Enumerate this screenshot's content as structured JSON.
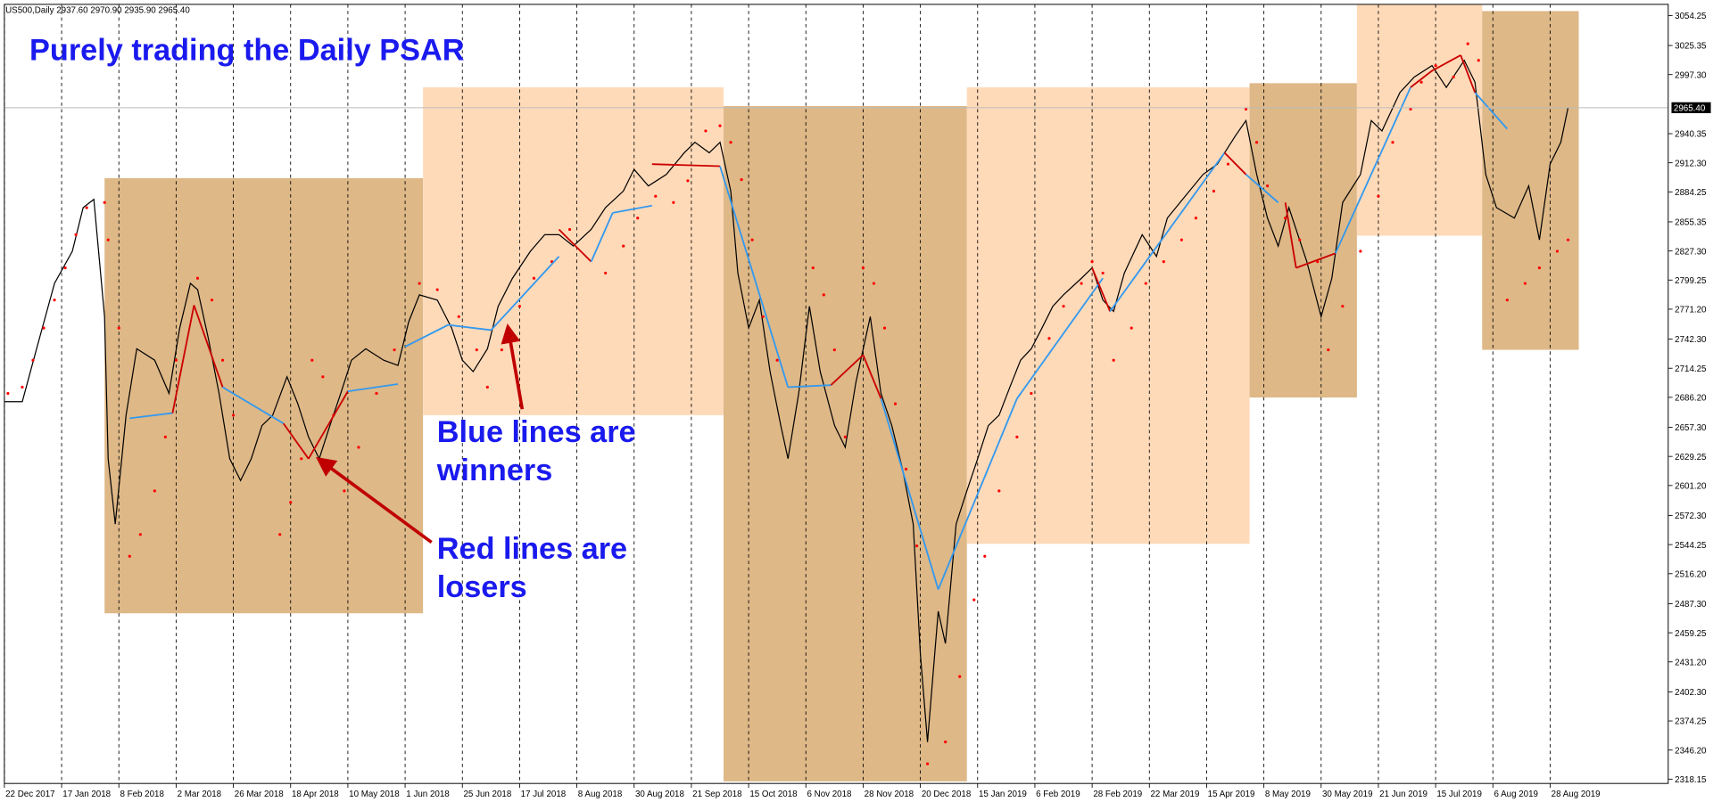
{
  "chart_data": {
    "type": "line",
    "header": "US500,Daily  2937.60 2970.90 2935.90 2965.40",
    "title": "Purely trading the Daily PSAR",
    "annotations": [
      {
        "lines": [
          "Blue lines are",
          "winners"
        ]
      },
      {
        "lines": [
          "Red lines are",
          "losers"
        ]
      }
    ],
    "xlim": [
      0,
      465
    ],
    "xticks": [
      {
        "value": 0,
        "label": "22 Dec 2017"
      },
      {
        "value": 16,
        "label": "17 Jan 2018"
      },
      {
        "value": 32,
        "label": "8 Feb 2018"
      },
      {
        "value": 48,
        "label": "2 Mar 2018"
      },
      {
        "value": 64,
        "label": "26 Mar 2018"
      },
      {
        "value": 80,
        "label": "18 Apr 2018"
      },
      {
        "value": 96,
        "label": "10 May 2018"
      },
      {
        "value": 112,
        "label": "1 Jun 2018"
      },
      {
        "value": 128,
        "label": "25 Jun 2018"
      },
      {
        "value": 144,
        "label": "17 Jul 2018"
      },
      {
        "value": 160,
        "label": "8 Aug 2018"
      },
      {
        "value": 176,
        "label": "30 Aug 2018"
      },
      {
        "value": 192,
        "label": "21 Sep 2018"
      },
      {
        "value": 208,
        "label": "15 Oct 2018"
      },
      {
        "value": 224,
        "label": "6 Nov 2018"
      },
      {
        "value": 240,
        "label": "28 Nov 2018"
      },
      {
        "value": 256,
        "label": "20 Dec 2018"
      },
      {
        "value": 272,
        "label": "15 Jan 2019"
      },
      {
        "value": 288,
        "label": "6 Feb 2019"
      },
      {
        "value": 304,
        "label": "28 Feb 2019"
      },
      {
        "value": 320,
        "label": "22 Mar 2019"
      },
      {
        "value": 336,
        "label": "15 Apr 2019"
      },
      {
        "value": 352,
        "label": "8 May 2019"
      },
      {
        "value": 368,
        "label": "30 May 2019"
      },
      {
        "value": 384,
        "label": "21 Jun 2019"
      },
      {
        "value": 400,
        "label": "15 Jul 2019"
      },
      {
        "value": 416,
        "label": "6 Aug 2019"
      },
      {
        "value": 432,
        "label": "28 Aug 2019"
      }
    ],
    "ylim": [
      2314,
      3065
    ],
    "yticks": [
      3054.25,
      3025.35,
      {
        "value": 2997.3,
        "label": "2997.30"
      },
      2940.35,
      {
        "value": 2912.3,
        "label": "2912.30"
      },
      2884.25,
      2855.35,
      {
        "value": 2827.3,
        "label": "2827.30"
      },
      2799.25,
      {
        "value": 2771.2,
        "label": "2771.20"
      },
      {
        "value": 2742.3,
        "label": "2742.30"
      },
      2714.25,
      {
        "value": 2686.2,
        "label": "2686.20"
      },
      {
        "value": 2657.3,
        "label": "2657.30"
      },
      2629.25,
      {
        "value": 2601.2,
        "label": "2601.20"
      },
      {
        "value": 2572.3,
        "label": "2572.30"
      },
      2544.25,
      {
        "value": 2516.2,
        "label": "2516.20"
      },
      {
        "value": 2487.3,
        "label": "2487.30"
      },
      2459.25,
      {
        "value": 2431.2,
        "label": "2431.20"
      },
      {
        "value": 2402.3,
        "label": "2402.30"
      },
      2374.25,
      {
        "value": 2346.2,
        "label": "2346.20"
      },
      2318.15
    ],
    "last_price": {
      "value": 2965.4,
      "label": "2965.40"
    },
    "zones": [
      {
        "x": [
          28,
          117
        ],
        "values": [
          2478,
          2897.5
        ],
        "color": "#deb887"
      },
      {
        "x": [
          117,
          201
        ],
        "values": [
          2669,
          2985
        ],
        "color": "#ffdab9"
      },
      {
        "x": [
          201,
          269
        ],
        "values": [
          2316,
          2967
        ],
        "color": "#deb887"
      },
      {
        "x": [
          269,
          348
        ],
        "values": [
          2545,
          2985
        ],
        "color": "#ffdab9"
      },
      {
        "x": [
          348,
          378
        ],
        "values": [
          2686,
          2989
        ],
        "color": "#deb887"
      },
      {
        "x": [
          378,
          413
        ],
        "values": [
          2842,
          3065
        ],
        "color": "#ffdab9"
      },
      {
        "x": [
          413,
          440
        ],
        "values": [
          2732,
          3058.5
        ],
        "color": "#deb887"
      }
    ],
    "series": [
      {
        "color": "#000000",
        "x": [
          0,
          5,
          9,
          14,
          19,
          22,
          25,
          28,
          29,
          31,
          34,
          37,
          42,
          46,
          49,
          52,
          54,
          57,
          60,
          63,
          66,
          69,
          72,
          75,
          79,
          82,
          85,
          88,
          91,
          94,
          97,
          101,
          106,
          110,
          113,
          116,
          121,
          125,
          128,
          131,
          135,
          138,
          142,
          147,
          151,
          155,
          159,
          164,
          168,
          173,
          176,
          180,
          185,
          190,
          193,
          197,
          200,
          203,
          205,
          208,
          211,
          214,
          217,
          219,
          222,
          225,
          228,
          232,
          235,
          238,
          242,
          245,
          248,
          251,
          254,
          256,
          258,
          261,
          263,
          266,
          269,
          272,
          275,
          278,
          281,
          284,
          287,
          290,
          293,
          296,
          301,
          304,
          307,
          310,
          313,
          318,
          322,
          325,
          330,
          335,
          339,
          344,
          347,
          350,
          353,
          356,
          359,
          364,
          368,
          371,
          374,
          379,
          382,
          385,
          390,
          394,
          399,
          403,
          408,
          411,
          414,
          417,
          422,
          426,
          429,
          432,
          435,
          437
        ],
        "values": [
          2682,
          2682,
          2733,
          2796,
          2827,
          2869,
          2877,
          2764,
          2627,
          2564,
          2669,
          2733,
          2722,
          2690,
          2753,
          2796,
          2790,
          2743,
          2690,
          2627,
          2606,
          2627,
          2659,
          2669,
          2706,
          2680,
          2648,
          2627,
          2659,
          2690,
          2722,
          2733,
          2722,
          2717,
          2759,
          2785,
          2780,
          2753,
          2722,
          2711,
          2733,
          2774,
          2801,
          2827,
          2843,
          2843,
          2832,
          2848,
          2869,
          2885,
          2906,
          2890,
          2901,
          2922,
          2932,
          2922,
          2932,
          2885,
          2806,
          2753,
          2780,
          2711,
          2659,
          2627,
          2690,
          2774,
          2711,
          2659,
          2638,
          2701,
          2764,
          2690,
          2659,
          2617,
          2564,
          2438,
          2354,
          2480,
          2449,
          2564,
          2596,
          2627,
          2659,
          2669,
          2696,
          2722,
          2733,
          2753,
          2774,
          2785,
          2801,
          2811,
          2780,
          2769,
          2806,
          2843,
          2822,
          2859,
          2880,
          2901,
          2911,
          2938,
          2953,
          2901,
          2859,
          2832,
          2869,
          2817,
          2764,
          2801,
          2874,
          2901,
          2953,
          2943,
          2980,
          2995,
          3006,
          2985,
          3011,
          2990,
          2901,
          2869,
          2859,
          2890,
          2838,
          2911,
          2932,
          2965.4
        ]
      }
    ],
    "psar": {
      "color": "#ff0000",
      "x": [
        1,
        5,
        8,
        11,
        14,
        17,
        20,
        23,
        28,
        29,
        32,
        35,
        38,
        42,
        45,
        48,
        54,
        58,
        61,
        64,
        77,
        80,
        83,
        86,
        89,
        92,
        95,
        99,
        104,
        109,
        116,
        121,
        127,
        132,
        135,
        139,
        144,
        148,
        153,
        158,
        168,
        173,
        177,
        182,
        187,
        191,
        196,
        200,
        203,
        206,
        209,
        212,
        216,
        226,
        229,
        232,
        235,
        240,
        243,
        246,
        249,
        252,
        255,
        258,
        263,
        267,
        271,
        274,
        278,
        283,
        287,
        292,
        296,
        301,
        304,
        307,
        310,
        315,
        319,
        324,
        329,
        333,
        338,
        342,
        347,
        350,
        353,
        358,
        362,
        367,
        370,
        374,
        379,
        384,
        388,
        393,
        396,
        400,
        405,
        409,
        412,
        420,
        425,
        429,
        434,
        437
      ],
      "values": [
        2690,
        2696,
        2722,
        2753,
        2780,
        2811,
        2843,
        2869,
        2874,
        2838,
        2753,
        2533,
        2554,
        2596,
        2648,
        2722,
        2801,
        2780,
        2722,
        2669,
        2554,
        2585,
        2627,
        2722,
        2706,
        2669,
        2596,
        2638,
        2690,
        2732,
        2796,
        2790,
        2764,
        2732,
        2696,
        2732,
        2774,
        2801,
        2817,
        2848,
        2806,
        2832,
        2859,
        2880,
        2874,
        2895,
        2943,
        2948,
        2932,
        2896,
        2838,
        2764,
        2722,
        2811,
        2785,
        2732,
        2648,
        2811,
        2796,
        2753,
        2680,
        2617,
        2543,
        2333,
        2354,
        2417,
        2491,
        2533,
        2596,
        2648,
        2690,
        2743,
        2774,
        2796,
        2817,
        2806,
        2722,
        2753,
        2796,
        2817,
        2838,
        2859,
        2885,
        2911,
        2964,
        2932,
        2890,
        2859,
        2838,
        2817,
        2732,
        2774,
        2827,
        2880,
        2932,
        2964,
        2990,
        3006,
        2995,
        3027,
        3011,
        2780,
        2796,
        2811,
        2827,
        2838
      ]
    },
    "trades": [
      {
        "x": [
          35,
          47
        ],
        "values": [
          2666,
          2671
        ],
        "color": "#3399ee"
      },
      {
        "x": [
          47,
          53
        ],
        "values": [
          2671,
          2775
        ],
        "color": "#cc0000"
      },
      {
        "x": [
          53,
          61
        ],
        "values": [
          2775,
          2696
        ],
        "color": "#cc0000"
      },
      {
        "x": [
          61,
          78
        ],
        "values": [
          2696,
          2661
        ],
        "color": "#3399ee"
      },
      {
        "x": [
          78,
          85
        ],
        "values": [
          2661,
          2627
        ],
        "color": "#cc0000"
      },
      {
        "x": [
          85,
          96
        ],
        "values": [
          2627,
          2692
        ],
        "color": "#cc0000"
      },
      {
        "x": [
          96,
          110
        ],
        "values": [
          2692,
          2699
        ],
        "color": "#3399ee"
      },
      {
        "x": [
          112,
          124
        ],
        "values": [
          2735,
          2756
        ],
        "color": "#3399ee"
      },
      {
        "x": [
          124,
          136
        ],
        "values": [
          2756,
          2751
        ],
        "color": "#3399ee"
      },
      {
        "x": [
          136,
          155
        ],
        "values": [
          2751,
          2822
        ],
        "color": "#3399ee"
      },
      {
        "x": [
          155,
          164
        ],
        "values": [
          2848,
          2817
        ],
        "color": "#cc0000"
      },
      {
        "x": [
          164,
          170
        ],
        "values": [
          2817,
          2864
        ],
        "color": "#3399ee"
      },
      {
        "x": [
          170,
          181
        ],
        "values": [
          2864,
          2871
        ],
        "color": "#3399ee"
      },
      {
        "x": [
          181,
          200
        ],
        "values": [
          2911,
          2909
        ],
        "color": "#cc0000"
      },
      {
        "x": [
          200,
          219
        ],
        "values": [
          2909,
          2696
        ],
        "color": "#3399ee"
      },
      {
        "x": [
          219,
          231
        ],
        "values": [
          2696,
          2698
        ],
        "color": "#3399ee"
      },
      {
        "x": [
          231,
          240
        ],
        "values": [
          2698,
          2727
        ],
        "color": "#cc0000"
      },
      {
        "x": [
          240,
          245
        ],
        "values": [
          2727,
          2685
        ],
        "color": "#cc0000"
      },
      {
        "x": [
          245,
          261
        ],
        "values": [
          2685,
          2501
        ],
        "color": "#3399ee"
      },
      {
        "x": [
          261,
          283
        ],
        "values": [
          2501,
          2685
        ],
        "color": "#3399ee"
      },
      {
        "x": [
          283,
          307
        ],
        "values": [
          2685,
          2801
        ],
        "color": "#3399ee"
      },
      {
        "x": [
          304,
          309
        ],
        "values": [
          2811,
          2769
        ],
        "color": "#cc0000"
      },
      {
        "x": [
          309,
          341
        ],
        "values": [
          2769,
          2922
        ],
        "color": "#3399ee"
      },
      {
        "x": [
          341,
          347
        ],
        "values": [
          2922,
          2901
        ],
        "color": "#cc0000"
      },
      {
        "x": [
          347,
          356
        ],
        "values": [
          2901,
          2874
        ],
        "color": "#3399ee"
      },
      {
        "x": [
          358,
          361
        ],
        "values": [
          2874,
          2811
        ],
        "color": "#cc0000"
      },
      {
        "x": [
          361,
          372
        ],
        "values": [
          2811,
          2825
        ],
        "color": "#cc0000"
      },
      {
        "x": [
          372,
          393
        ],
        "values": [
          2825,
          2985
        ],
        "color": "#3399ee"
      },
      {
        "x": [
          393,
          399
        ],
        "values": [
          2985,
          3001
        ],
        "color": "#cc0000"
      },
      {
        "x": [
          399,
          407
        ],
        "values": [
          3001,
          3016
        ],
        "color": "#cc0000"
      },
      {
        "x": [
          407,
          411
        ],
        "values": [
          3016,
          2980
        ],
        "color": "#cc0000"
      },
      {
        "x": [
          411,
          420
        ],
        "values": [
          2980,
          2945
        ],
        "color": "#3399ee"
      }
    ]
  }
}
